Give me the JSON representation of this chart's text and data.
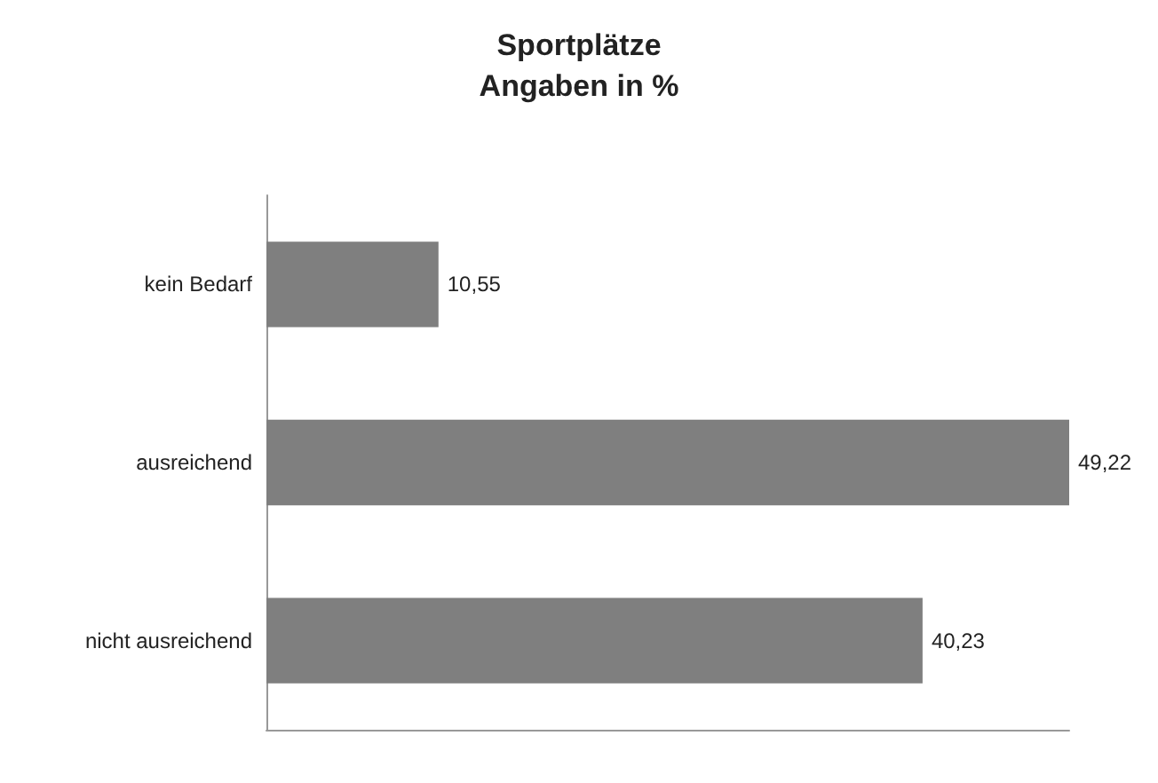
{
  "chart_data": {
    "type": "bar",
    "orientation": "horizontal",
    "title": "Sportplätze",
    "subtitle": "Angaben in %",
    "categories": [
      "kein Bedarf",
      "ausreichend",
      "nicht ausreichend"
    ],
    "values": [
      10.55,
      49.22,
      40.23
    ],
    "value_labels": [
      "10,55",
      "49,22",
      "40,23"
    ],
    "color": "#7f7f7f",
    "grid": false
  }
}
